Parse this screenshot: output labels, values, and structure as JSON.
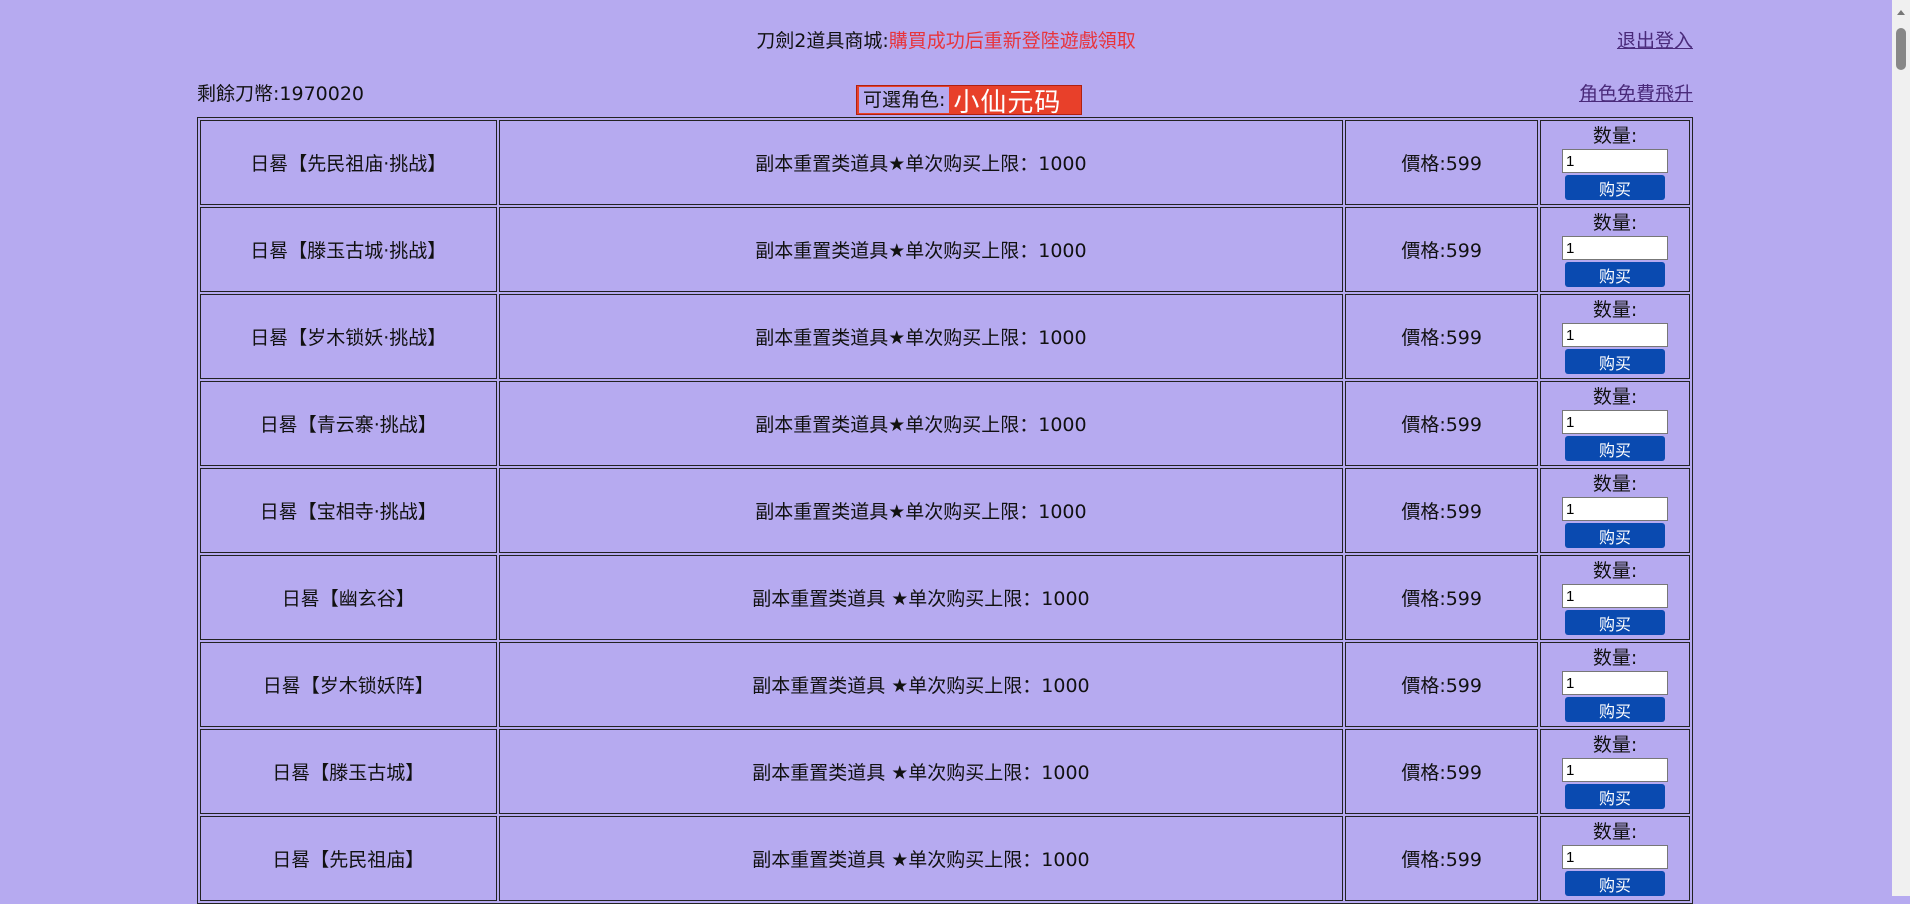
{
  "header": {
    "title": "刀劍2道具商城:",
    "notice": "購買成功后重新登陸遊戲領取",
    "logout": "退出登入",
    "coins": "剩餘刀幣:1970020",
    "fly": "角色免費飛升",
    "role_label": "可選角色:",
    "role_name": "小仙元码"
  },
  "qty_label": "数量:",
  "buy_label": "购买",
  "items": [
    {
      "name": "日晷【先民祖庙·挑战】",
      "desc": "副本重置类道具★单次购买上限：1000",
      "price": "價格:599",
      "qty": "1"
    },
    {
      "name": "日晷【滕玉古城·挑战】",
      "desc": "副本重置类道具★单次购买上限：1000",
      "price": "價格:599",
      "qty": "1"
    },
    {
      "name": "日晷【岁木锁妖·挑战】",
      "desc": "副本重置类道具★单次购买上限：1000",
      "price": "價格:599",
      "qty": "1"
    },
    {
      "name": "日晷【青云寨·挑战】",
      "desc": "副本重置类道具★单次购买上限：1000",
      "price": "價格:599",
      "qty": "1"
    },
    {
      "name": "日晷【宝相寺·挑战】",
      "desc": "副本重置类道具★单次购买上限：1000",
      "price": "價格:599",
      "qty": "1"
    },
    {
      "name": "日晷【幽玄谷】",
      "desc": "副本重置类道具 ★单次购买上限：1000",
      "price": "價格:599",
      "qty": "1"
    },
    {
      "name": "日晷【岁木锁妖阵】",
      "desc": "副本重置类道具 ★单次购买上限：1000",
      "price": "價格:599",
      "qty": "1"
    },
    {
      "name": "日晷【滕玉古城】",
      "desc": "副本重置类道具 ★单次购买上限：1000",
      "price": "價格:599",
      "qty": "1"
    },
    {
      "name": "日晷【先民祖庙】",
      "desc": "副本重置类道具 ★单次购买上限：1000",
      "price": "價格:599",
      "qty": "1"
    }
  ]
}
